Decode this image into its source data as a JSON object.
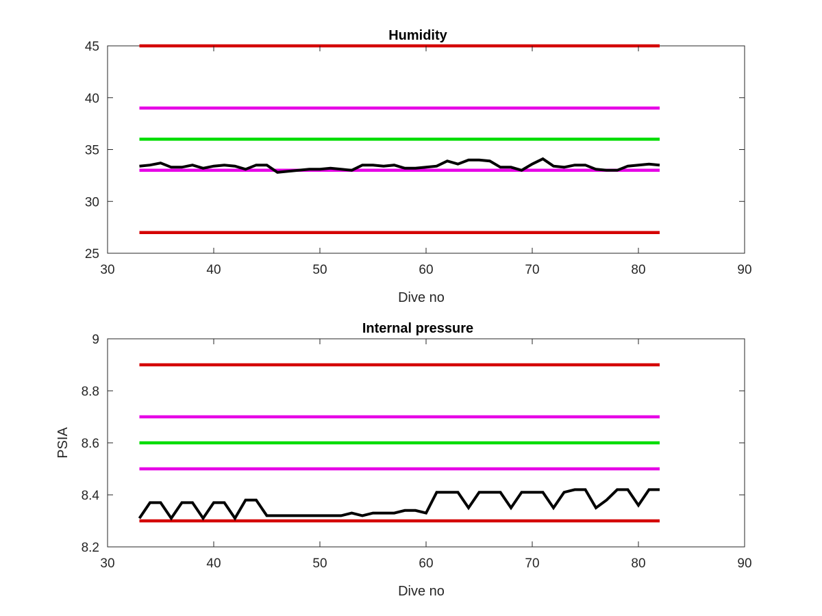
{
  "colors": {
    "limit_outer": "#d40000",
    "limit_inner": "#e600e6",
    "target": "#00dd00",
    "measured": "#000000",
    "axes": "#262626"
  },
  "chart_data": [
    {
      "type": "line",
      "title": "Humidity",
      "xlabel": "Dive no",
      "ylabel": "",
      "xlim": [
        30,
        90
      ],
      "ylim": [
        25,
        45
      ],
      "xticks": [
        "30",
        "40",
        "50",
        "60",
        "70",
        "80",
        "90"
      ],
      "yticks": [
        "25",
        "30",
        "35",
        "40",
        "45"
      ],
      "grid": false,
      "reference_lines": [
        {
          "y": 45,
          "x": [
            33,
            82
          ],
          "color": "#d40000"
        },
        {
          "y": 39,
          "x": [
            33,
            82
          ],
          "color": "#e600e6"
        },
        {
          "y": 36,
          "x": [
            33,
            82
          ],
          "color": "#00dd00"
        },
        {
          "y": 33,
          "x": [
            33,
            82
          ],
          "color": "#e600e6"
        },
        {
          "y": 27,
          "x": [
            33,
            82
          ],
          "color": "#d40000"
        }
      ],
      "series": [
        {
          "color": "#000000",
          "x": [
            33,
            34,
            35,
            36,
            37,
            38,
            39,
            40,
            41,
            42,
            43,
            44,
            45,
            46,
            47,
            48,
            49,
            50,
            51,
            52,
            53,
            54,
            55,
            56,
            57,
            58,
            59,
            60,
            61,
            62,
            63,
            64,
            65,
            66,
            67,
            68,
            69,
            70,
            71,
            72,
            73,
            74,
            75,
            76,
            77,
            78,
            79,
            80,
            81,
            82
          ],
          "values": [
            33.4,
            33.5,
            33.7,
            33.3,
            33.3,
            33.5,
            33.2,
            33.4,
            33.5,
            33.4,
            33.1,
            33.5,
            33.5,
            32.8,
            32.9,
            33.0,
            33.1,
            33.1,
            33.2,
            33.1,
            33.0,
            33.5,
            33.5,
            33.4,
            33.5,
            33.2,
            33.2,
            33.3,
            33.4,
            33.9,
            33.6,
            34.0,
            34.0,
            33.9,
            33.3,
            33.3,
            33.0,
            33.6,
            34.1,
            33.4,
            33.3,
            33.5,
            33.5,
            33.1,
            33.0,
            33.0,
            33.4,
            33.5,
            33.6,
            33.5
          ]
        }
      ]
    },
    {
      "type": "line",
      "title": "Internal pressure",
      "xlabel": "Dive no",
      "ylabel": "PSIA",
      "xlim": [
        30,
        90
      ],
      "ylim": [
        8.2,
        9
      ],
      "xticks": [
        "30",
        "40",
        "50",
        "60",
        "70",
        "80",
        "90"
      ],
      "yticks": [
        "8.2",
        "8.4",
        "8.6",
        "8.8",
        "9"
      ],
      "grid": false,
      "reference_lines": [
        {
          "y": 8.9,
          "x": [
            33,
            82
          ],
          "color": "#d40000"
        },
        {
          "y": 8.7,
          "x": [
            33,
            82
          ],
          "color": "#e600e6"
        },
        {
          "y": 8.6,
          "x": [
            33,
            82
          ],
          "color": "#00dd00"
        },
        {
          "y": 8.5,
          "x": [
            33,
            82
          ],
          "color": "#e600e6"
        },
        {
          "y": 8.3,
          "x": [
            33,
            82
          ],
          "color": "#d40000"
        }
      ],
      "series": [
        {
          "color": "#000000",
          "x": [
            33,
            34,
            35,
            36,
            37,
            38,
            39,
            40,
            41,
            42,
            43,
            44,
            45,
            46,
            47,
            48,
            49,
            50,
            51,
            52,
            53,
            54,
            55,
            56,
            57,
            58,
            59,
            60,
            61,
            62,
            63,
            64,
            65,
            66,
            67,
            68,
            69,
            70,
            71,
            72,
            73,
            74,
            75,
            76,
            77,
            78,
            79,
            80,
            81,
            82
          ],
          "values": [
            8.31,
            8.37,
            8.37,
            8.31,
            8.37,
            8.37,
            8.31,
            8.37,
            8.37,
            8.31,
            8.38,
            8.38,
            8.32,
            8.32,
            8.32,
            8.32,
            8.32,
            8.32,
            8.32,
            8.32,
            8.33,
            8.32,
            8.33,
            8.33,
            8.33,
            8.34,
            8.34,
            8.33,
            8.41,
            8.41,
            8.41,
            8.35,
            8.41,
            8.41,
            8.41,
            8.35,
            8.41,
            8.41,
            8.41,
            8.35,
            8.41,
            8.42,
            8.42,
            8.35,
            8.38,
            8.42,
            8.42,
            8.36,
            8.42,
            8.42
          ]
        }
      ]
    }
  ]
}
